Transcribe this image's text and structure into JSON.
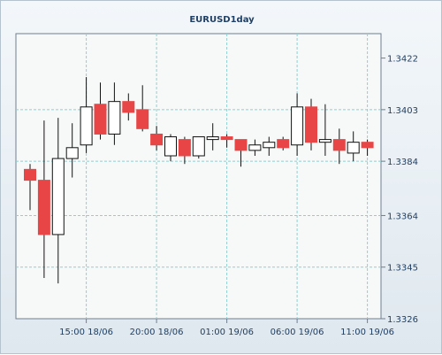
{
  "chart_data": {
    "type": "candlestick",
    "title": "EURUSD1day",
    "xlabel": "",
    "ylabel": "",
    "ylim": [
      1.3326,
      1.3431
    ],
    "y_ticks": [
      "1.3422",
      "1.3403",
      "1.3384",
      "1.3364",
      "1.3345",
      "1.3326"
    ],
    "x_ticks": [
      {
        "label": "15:00 18/06",
        "index": 4
      },
      {
        "label": "20:00 18/06",
        "index": 9
      },
      {
        "label": "01:00 19/06",
        "index": 14
      },
      {
        "label": "06:00 19/06",
        "index": 19
      },
      {
        "label": "11:00 19/06",
        "index": 24
      }
    ],
    "grid": true,
    "colors": {
      "up": "#ffffff",
      "down": "#e84646",
      "wick": "#111111",
      "grid": "#8fcfcf"
    },
    "candles": [
      {
        "open": 1.3381,
        "high": 1.3383,
        "low": 1.3366,
        "close": 1.3377
      },
      {
        "open": 1.3377,
        "high": 1.3399,
        "low": 1.3341,
        "close": 1.3357
      },
      {
        "open": 1.3357,
        "high": 1.34,
        "low": 1.3339,
        "close": 1.3385
      },
      {
        "open": 1.3385,
        "high": 1.3398,
        "low": 1.3378,
        "close": 1.3389
      },
      {
        "open": 1.339,
        "high": 1.3415,
        "low": 1.3387,
        "close": 1.3404
      },
      {
        "open": 1.3405,
        "high": 1.3413,
        "low": 1.3392,
        "close": 1.3394
      },
      {
        "open": 1.3394,
        "high": 1.3413,
        "low": 1.339,
        "close": 1.3406
      },
      {
        "open": 1.3406,
        "high": 1.3409,
        "low": 1.3399,
        "close": 1.3402
      },
      {
        "open": 1.3403,
        "high": 1.3412,
        "low": 1.3395,
        "close": 1.3396
      },
      {
        "open": 1.3394,
        "high": 1.3397,
        "low": 1.3388,
        "close": 1.339
      },
      {
        "open": 1.3386,
        "high": 1.3394,
        "low": 1.3384,
        "close": 1.3393
      },
      {
        "open": 1.3392,
        "high": 1.3393,
        "low": 1.3383,
        "close": 1.3386
      },
      {
        "open": 1.3386,
        "high": 1.3393,
        "low": 1.3385,
        "close": 1.3393
      },
      {
        "open": 1.3392,
        "high": 1.3398,
        "low": 1.3388,
        "close": 1.3393
      },
      {
        "open": 1.3393,
        "high": 1.3394,
        "low": 1.3389,
        "close": 1.3392
      },
      {
        "open": 1.3392,
        "high": 1.3392,
        "low": 1.3382,
        "close": 1.3388
      },
      {
        "open": 1.3388,
        "high": 1.3392,
        "low": 1.3386,
        "close": 1.339
      },
      {
        "open": 1.3389,
        "high": 1.3393,
        "low": 1.3386,
        "close": 1.3391
      },
      {
        "open": 1.3392,
        "high": 1.3393,
        "low": 1.3388,
        "close": 1.3389
      },
      {
        "open": 1.339,
        "high": 1.3409,
        "low": 1.3386,
        "close": 1.3404
      },
      {
        "open": 1.3404,
        "high": 1.3407,
        "low": 1.3388,
        "close": 1.3391
      },
      {
        "open": 1.3391,
        "high": 1.3405,
        "low": 1.3386,
        "close": 1.3392
      },
      {
        "open": 1.3392,
        "high": 1.3396,
        "low": 1.3383,
        "close": 1.3388
      },
      {
        "open": 1.3387,
        "high": 1.3395,
        "low": 1.3384,
        "close": 1.3391
      },
      {
        "open": 1.3391,
        "high": 1.3392,
        "low": 1.3386,
        "close": 1.3389
      }
    ]
  }
}
